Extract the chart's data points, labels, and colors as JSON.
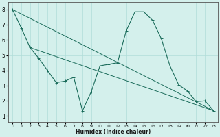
{
  "xlabel": "Humidex (Indice chaleur)",
  "bg_color": "#d4f0ec",
  "line_color": "#1a6b5a",
  "grid_color": "#b0ddd8",
  "xlim": [
    -0.5,
    23.5
  ],
  "ylim": [
    0.6,
    8.5
  ],
  "xticks": [
    0,
    1,
    2,
    3,
    4,
    5,
    6,
    7,
    8,
    9,
    10,
    11,
    12,
    13,
    14,
    15,
    16,
    17,
    18,
    19,
    20,
    21,
    22,
    23
  ],
  "yticks": [
    1,
    2,
    3,
    4,
    5,
    6,
    7,
    8
  ],
  "zigzag": {
    "x": [
      0,
      1,
      2,
      3,
      4,
      5,
      6,
      7,
      8,
      9,
      10,
      11,
      12,
      13,
      14,
      15,
      16,
      17,
      18,
      19,
      20,
      21,
      22,
      23
    ],
    "y": [
      8.0,
      6.8,
      5.5,
      4.8,
      4.0,
      3.2,
      3.3,
      3.55,
      1.35,
      2.6,
      4.3,
      4.4,
      4.5,
      6.6,
      7.85,
      7.85,
      7.3,
      6.1,
      4.3,
      3.05,
      2.65,
      1.95,
      2.0,
      1.35
    ]
  },
  "trend1": {
    "x": [
      0,
      23
    ],
    "y": [
      8.0,
      1.35
    ]
  },
  "trend2": {
    "x": [
      2,
      23
    ],
    "y": [
      5.5,
      1.35
    ]
  }
}
